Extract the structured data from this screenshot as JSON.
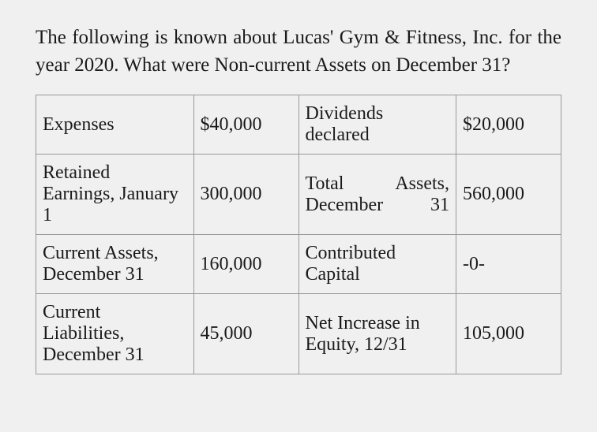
{
  "question": "The following is known about Lucas' Gym & Fitness, Inc. for the year 2020. What were Non-current Assets on December 31?",
  "table": {
    "background_color": "#f0f0f0",
    "border_color": "#999999",
    "text_color": "#1a1a1a",
    "font_family": "Georgia, serif",
    "label_fontsize": 24,
    "value_fontsize": 24,
    "rows": [
      {
        "label1": "Expenses",
        "value1": "$40,000",
        "label2": "Dividends declared",
        "value2": "$20,000"
      },
      {
        "label1": "Retained Earnings, January 1",
        "value1": "300,000",
        "label2": "Total Assets, December 31",
        "value2": "560,000"
      },
      {
        "label1": "Current Assets, December 31",
        "value1": "160,000",
        "label2": "Contributed Capital",
        "value2": "-0-"
      },
      {
        "label1": "Current Liabilities, December 31",
        "value1": "45,000",
        "label2": "Net Increase in Equity, 12/31",
        "value2": "105,000"
      }
    ]
  }
}
